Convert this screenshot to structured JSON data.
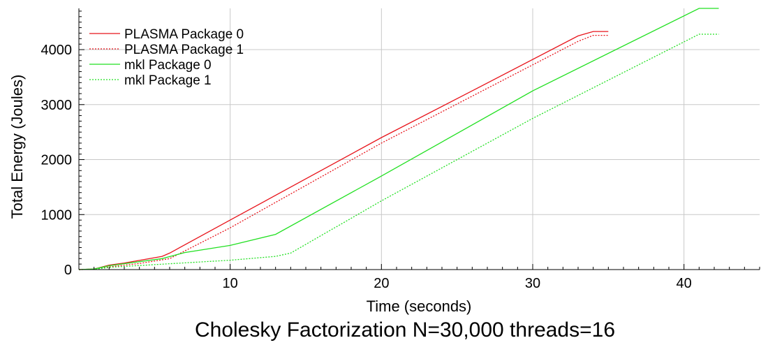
{
  "chart_data": {
    "type": "line",
    "title": "Cholesky Factorization N=30,000 threads=16",
    "xlabel": "Time (seconds)",
    "ylabel": "Total Energy (Joules)",
    "xlim": [
      0,
      45
    ],
    "ylim": [
      0,
      4750
    ],
    "x_ticks": [
      10,
      20,
      30,
      40
    ],
    "y_ticks": [
      0,
      1000,
      2000,
      3000,
      4000
    ],
    "grid": true,
    "legend_position": "top-left",
    "series": [
      {
        "name": "PLASMA Package 0",
        "color": "#e8141b",
        "style": "solid",
        "points": [
          [
            0,
            0
          ],
          [
            1,
            10
          ],
          [
            2,
            80
          ],
          [
            3,
            120
          ],
          [
            5.5,
            240
          ],
          [
            6,
            300
          ],
          [
            10,
            900
          ],
          [
            20,
            2400
          ],
          [
            26,
            3250
          ],
          [
            33,
            4250
          ],
          [
            34,
            4330
          ],
          [
            35,
            4330
          ]
        ]
      },
      {
        "name": "PLASMA Package 1",
        "color": "#e8141b",
        "style": "dotted",
        "points": [
          [
            0,
            0
          ],
          [
            1,
            5
          ],
          [
            2,
            50
          ],
          [
            4,
            110
          ],
          [
            6,
            200
          ],
          [
            10,
            760
          ],
          [
            20,
            2300
          ],
          [
            33,
            4150
          ],
          [
            34,
            4260
          ],
          [
            35,
            4260
          ]
        ]
      },
      {
        "name": "mkl Package 0",
        "color": "#22e022",
        "style": "solid",
        "points": [
          [
            0,
            0
          ],
          [
            1,
            10
          ],
          [
            2,
            70
          ],
          [
            5.5,
            200
          ],
          [
            7,
            310
          ],
          [
            10,
            440
          ],
          [
            13,
            640
          ],
          [
            20,
            1700
          ],
          [
            30,
            3250
          ],
          [
            41,
            4750
          ],
          [
            42.3,
            4750
          ]
        ]
      },
      {
        "name": "mkl Package 1",
        "color": "#22e022",
        "style": "dotted",
        "points": [
          [
            0,
            0
          ],
          [
            1,
            5
          ],
          [
            2,
            40
          ],
          [
            5,
            90
          ],
          [
            10,
            170
          ],
          [
            13,
            240
          ],
          [
            14,
            300
          ],
          [
            20,
            1250
          ],
          [
            30,
            2750
          ],
          [
            41,
            4280
          ],
          [
            42.3,
            4280
          ]
        ]
      }
    ]
  }
}
